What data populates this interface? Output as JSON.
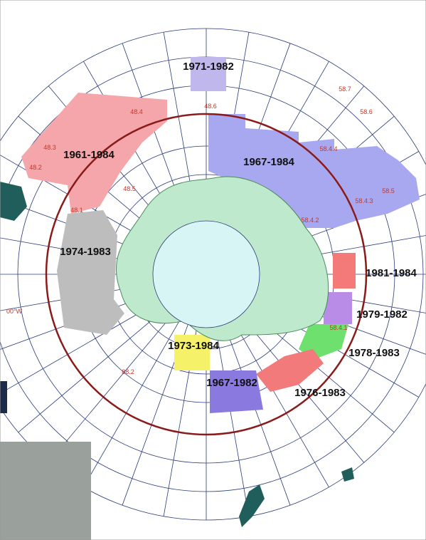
{
  "map": {
    "periods": [
      "1971-1982",
      "1967-1984",
      "1961-1984",
      "1974-1983",
      "1981-1984",
      "1979-1982",
      "1978-1983",
      "1976-1983",
      "1973-1984",
      "1967-1982"
    ],
    "areas": [
      "48.6",
      "48.4",
      "48.3",
      "48.2",
      "48.1",
      "48.5",
      "58.7",
      "58.6",
      "58.4.4",
      "58.5",
      "58.4.3",
      "58.4.2",
      "58.4.1",
      "88.2"
    ],
    "edge_label": "00°W"
  }
}
